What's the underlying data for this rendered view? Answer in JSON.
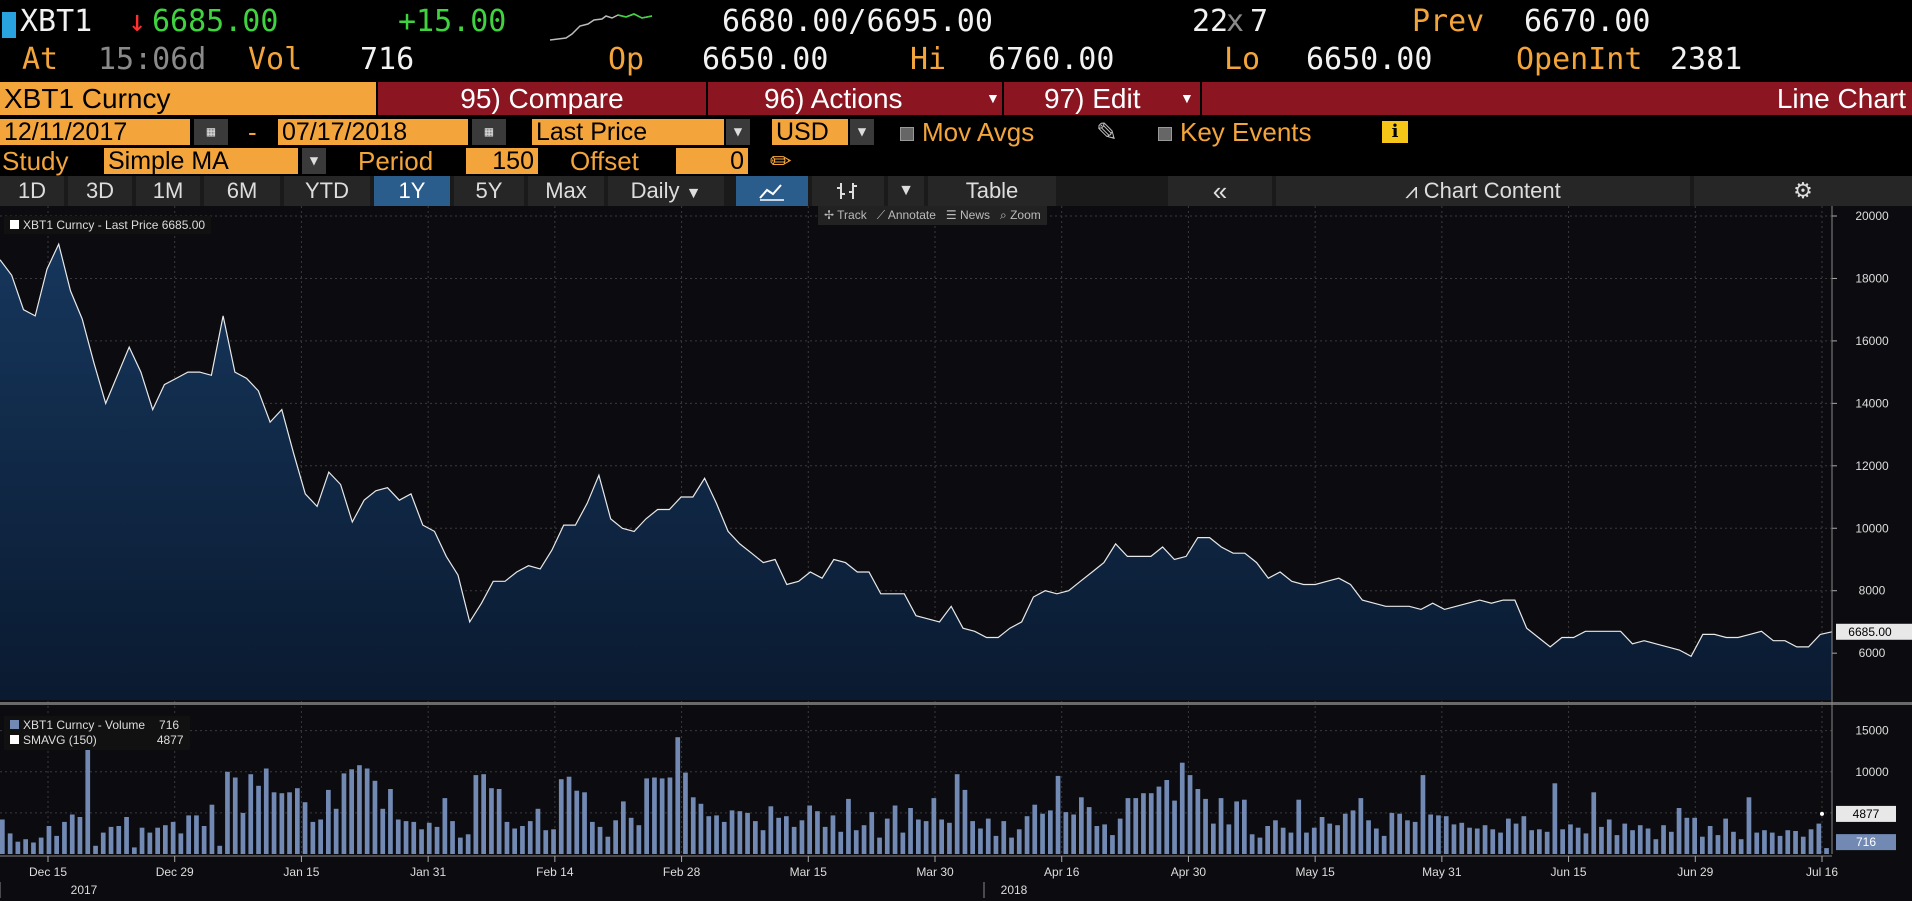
{
  "header": {
    "ticker": "XBT1",
    "last": "6685.00",
    "change": "+15.00",
    "bid_ask": "6680.00/6695.00",
    "size_a": "22",
    "size_sep": "x",
    "size_b": "7",
    "prev_label": "Prev",
    "prev": "6670.00",
    "at_label": "At",
    "time": "15:06d",
    "vol_label": "Vol",
    "vol": "716",
    "op_label": "Op",
    "op": "6650.00",
    "hi_label": "Hi",
    "hi": "6760.00",
    "lo_label": "Lo",
    "lo": "6650.00",
    "oi_label": "OpenInt",
    "oi": "2381"
  },
  "function_bar": {
    "security": "XBT1 Curncy",
    "compare": "95) Compare",
    "actions": "96) Actions",
    "edit": "97) Edit",
    "chart_type": "Line Chart"
  },
  "settings": {
    "start_date": "12/11/2017",
    "dash": "-",
    "end_date": "07/17/2018",
    "field": "Last Price",
    "currency": "USD",
    "mov_avgs": "Mov Avgs",
    "key_events": "Key Events",
    "info_icon_text": "i"
  },
  "study": {
    "label": "Study",
    "value": "Simple MA",
    "period_label": "Period",
    "period": "150",
    "offset_label": "Offset",
    "offset": "0"
  },
  "tabs": [
    "1D",
    "3D",
    "1M",
    "6M",
    "YTD",
    "1Y",
    "5Y",
    "Max"
  ],
  "active_tab": "1Y",
  "frequency": "Daily",
  "table_label": "Table",
  "chart_content_label": "Chart Content",
  "chart_tools": [
    "Track",
    "Annotate",
    "News",
    "Zoom"
  ],
  "colors": {
    "amber": "#f3a53b",
    "function_bar": "#8b1520",
    "active_tab": "#2b5d8c",
    "price_fill": "#16365c",
    "volume_bar": "#7189b3"
  },
  "icons": [
    "calendar-icon",
    "dropdown-arrow-icon",
    "pencil-icon",
    "info-icon",
    "line-chart-icon",
    "bar-chart-icon",
    "double-left-chevron-icon",
    "gear-icon",
    "sparkline-icon"
  ],
  "chart_data": [
    {
      "type": "area",
      "legend": "XBT1 Curncy - Last Price 6685.00",
      "last_label": "6685.00",
      "ylim": [
        4500,
        20000
      ],
      "yticks": [
        6000,
        8000,
        10000,
        12000,
        14000,
        16000,
        18000,
        20000
      ],
      "x_labels": [
        "Dec 15",
        "Dec 29",
        "Jan 15",
        "Jan 31",
        "Feb 14",
        "Feb 28",
        "Mar 15",
        "Mar 30",
        "Apr 16",
        "Apr 30",
        "May 15",
        "May 31",
        "Jun 15",
        "Jun 29",
        "Jul 16"
      ],
      "year_labels": [
        "2017",
        "2018"
      ],
      "values": [
        18600,
        18100,
        17000,
        16800,
        18300,
        19100,
        17600,
        16700,
        15300,
        14000,
        14900,
        15800,
        15000,
        13800,
        14600,
        14800,
        15000,
        15000,
        14900,
        16800,
        15000,
        14800,
        14400,
        13400,
        13800,
        12400,
        11100,
        10700,
        11800,
        11400,
        10200,
        10900,
        11200,
        11300,
        10900,
        11100,
        10100,
        9900,
        9100,
        8500,
        7000,
        7600,
        8300,
        8300,
        8600,
        8800,
        8700,
        9300,
        10100,
        10100,
        10800,
        11700,
        10300,
        10000,
        9900,
        10300,
        10600,
        10600,
        11000,
        11000,
        11600,
        10800,
        9900,
        9500,
        9200,
        8900,
        9000,
        8200,
        8300,
        8600,
        8400,
        9000,
        8900,
        8600,
        8600,
        7900,
        7900,
        7900,
        7200,
        7100,
        7000,
        7500,
        6800,
        6700,
        6500,
        6500,
        6800,
        7000,
        7800,
        8000,
        7900,
        8000,
        8300,
        8600,
        8900,
        9500,
        9100,
        9100,
        9100,
        9400,
        9000,
        9100,
        9700,
        9700,
        9400,
        9200,
        9200,
        8900,
        8400,
        8600,
        8300,
        8200,
        8200,
        8300,
        8400,
        8200,
        7700,
        7600,
        7500,
        7500,
        7500,
        7400,
        7600,
        7400,
        7500,
        7600,
        7700,
        7600,
        7700,
        7700,
        6800,
        6500,
        6200,
        6500,
        6500,
        6700,
        6700,
        6700,
        6700,
        6300,
        6400,
        6300,
        6200,
        6100,
        5900,
        6600,
        6600,
        6500,
        6500,
        6600,
        6700,
        6400,
        6400,
        6200,
        6200,
        6600,
        6685
      ]
    },
    {
      "type": "bar",
      "legend_volume": "XBT1 Curncy - Volume",
      "legend_volume_value": "716",
      "legend_smavg": "SMAVG (150)",
      "legend_smavg_value": "4877",
      "smavg_label": "4877",
      "last_label": "716",
      "ylim": [
        0,
        18000
      ],
      "yticks": [
        5000,
        10000,
        15000
      ],
      "values": [
        4200,
        2500,
        1500,
        1800,
        1400,
        2000,
        3400,
        2200,
        3900,
        4800,
        4500,
        12800,
        1000,
        2600,
        3300,
        3400,
        4500,
        800,
        3200,
        2600,
        3200,
        3500,
        3900,
        2500,
        4700,
        4700,
        3400,
        6000,
        1000,
        10000,
        9300,
        5000,
        9700,
        8300,
        10400,
        7500,
        7400,
        7500,
        8000,
        6300,
        3900,
        4200,
        7800,
        5500,
        9800,
        10300,
        10800,
        10400,
        8900,
        5500,
        7900,
        4200,
        4000,
        3900,
        3000,
        3800,
        3300,
        6800,
        4000,
        2000,
        2400,
        9600,
        9700,
        8000,
        7900,
        3900,
        3100,
        3400,
        4000,
        5500,
        2900,
        3000,
        9100,
        9400,
        7700,
        7500,
        3900,
        3300,
        2100,
        4100,
        6400,
        4400,
        3500,
        9200,
        9300,
        9200,
        9300,
        14200,
        9900,
        6900,
        6100,
        4600,
        4700,
        3900,
        5300,
        5200,
        5000,
        4000,
        2900,
        5800,
        4400,
        4600,
        3300,
        4100,
        5900,
        5200,
        3300,
        4700,
        2700,
        6700,
        2900,
        3500,
        5100,
        2000,
        4300,
        5900,
        2600,
        5600,
        4200,
        4000,
        6800,
        4200,
        3800,
        9700,
        7800,
        4000,
        3100,
        4300,
        2200,
        4000,
        2000,
        3000,
        4600,
        6000,
        4900,
        5300,
        9500,
        5100,
        4800,
        6900,
        5700,
        3400,
        3600,
        2300,
        4300,
        6800,
        6800,
        7400,
        7400,
        8200,
        9000,
        6500,
        11100,
        9600,
        7900,
        6700,
        3700,
        6800,
        3600,
        6400,
        6600,
        2400,
        2000,
        3400,
        4100,
        3200,
        2600,
        6600,
        2600,
        3200,
        4500,
        3700,
        3500,
        4900,
        5300,
        6800,
        4100,
        3100,
        2200,
        5000,
        4900,
        4100,
        3900,
        9600,
        4800,
        4700,
        4600,
        3600,
        3800,
        3200,
        3100,
        3500,
        3000,
        2600,
        4300,
        3700,
        4600,
        2900,
        3000,
        2700,
        8600,
        3000,
        3600,
        3200,
        2500,
        7500,
        3300,
        4200,
        2300,
        3700,
        2900,
        3500,
        3100,
        1800,
        3500,
        2700,
        5600,
        4400,
        4400,
        2100,
        3400,
        2300,
        4300,
        2700,
        1800,
        6900,
        2600,
        2900,
        2600,
        2200,
        2900,
        2800,
        2100,
        3000,
        3700,
        716
      ]
    }
  ]
}
